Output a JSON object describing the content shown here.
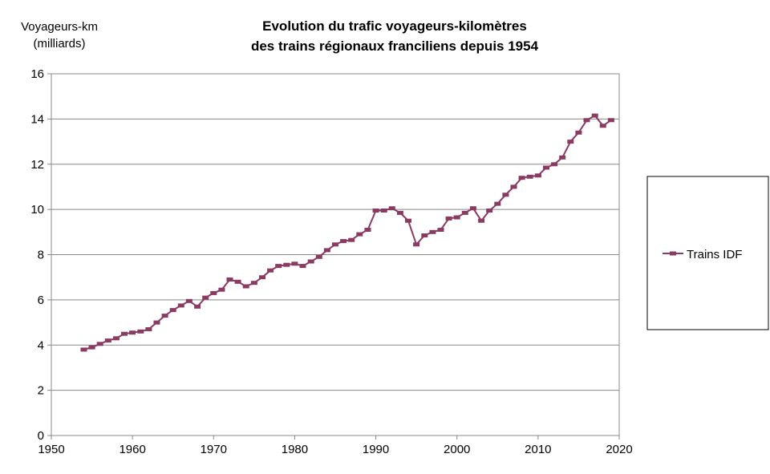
{
  "chart_data": {
    "type": "line",
    "title": [
      "Evolution du trafic voyageurs-kilomètres",
      "des trains régionaux franciliens depuis 1954"
    ],
    "ylabel": [
      "Voyageurs-km",
      "(milliards)"
    ],
    "xlabel": "",
    "xlim": [
      1950,
      2020
    ],
    "ylim": [
      0,
      16
    ],
    "xticks": [
      "1950",
      "1960",
      "1970",
      "1980",
      "1990",
      "2000",
      "2010",
      "2020"
    ],
    "yticks": [
      "0",
      "2",
      "4",
      "6",
      "8",
      "10",
      "12",
      "14",
      "16"
    ],
    "grid": "horizontal",
    "legend": "right",
    "series": [
      {
        "name": "Trains IDF",
        "color": "#8B3A62",
        "x": [
          1954,
          1955,
          1956,
          1957,
          1958,
          1959,
          1960,
          1961,
          1962,
          1963,
          1964,
          1965,
          1966,
          1967,
          1968,
          1969,
          1970,
          1971,
          1972,
          1973,
          1974,
          1975,
          1976,
          1977,
          1978,
          1979,
          1980,
          1981,
          1982,
          1983,
          1984,
          1985,
          1986,
          1987,
          1988,
          1989,
          1990,
          1991,
          1992,
          1993,
          1994,
          1995,
          1996,
          1997,
          1998,
          1999,
          2000,
          2001,
          2002,
          2003,
          2004,
          2005,
          2006,
          2007,
          2008,
          2009,
          2010,
          2011,
          2012,
          2013,
          2014,
          2015,
          2016,
          2017,
          2018,
          2019
        ],
        "y": [
          3.8,
          3.9,
          4.05,
          4.2,
          4.3,
          4.5,
          4.55,
          4.6,
          4.7,
          5.0,
          5.3,
          5.55,
          5.75,
          5.95,
          5.7,
          6.1,
          6.3,
          6.45,
          6.9,
          6.8,
          6.6,
          6.75,
          7.0,
          7.3,
          7.5,
          7.55,
          7.6,
          7.5,
          7.7,
          7.9,
          8.2,
          8.45,
          8.6,
          8.65,
          8.9,
          9.1,
          9.95,
          9.95,
          10.05,
          9.85,
          9.5,
          8.45,
          8.85,
          9.0,
          9.1,
          9.6,
          9.65,
          9.85,
          10.05,
          9.5,
          9.95,
          10.25,
          10.65,
          11.0,
          11.4,
          11.45,
          11.5,
          11.85,
          12.0,
          12.3,
          13.0,
          13.4,
          13.95,
          14.15,
          13.7,
          13.95
        ]
      }
    ]
  }
}
